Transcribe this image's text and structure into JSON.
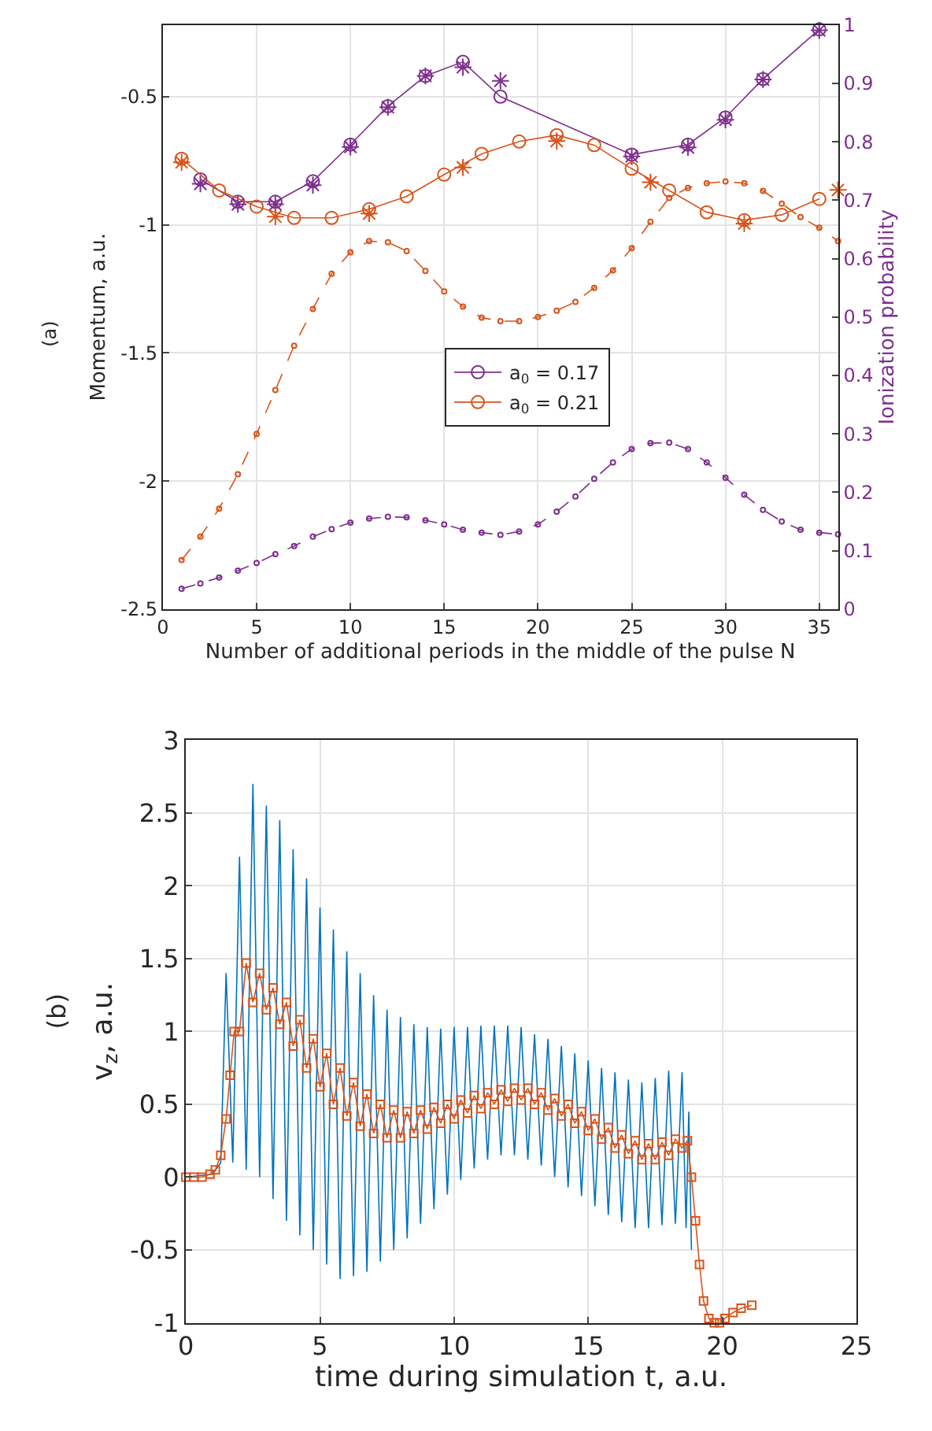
{
  "chart_data": [
    {
      "type": "line",
      "xlabel": "Number of additional periods in the middle of the pulse N",
      "ylabel": "Momentum, a.u.",
      "y2label": "Ionization probability",
      "annotations": [
        "(a)"
      ],
      "xlim": [
        0,
        36
      ],
      "xticks": [
        0,
        5,
        10,
        15,
        20,
        25,
        30,
        35
      ],
      "ylim": [
        -2.5,
        -0.22
      ],
      "yticks": [
        -2.5,
        -2,
        -1.5,
        -1,
        -0.5
      ],
      "y2lim": [
        0,
        1
      ],
      "y2ticks": [
        0,
        0.1,
        0.2,
        0.3,
        0.4,
        0.5,
        0.6,
        0.7,
        0.8,
        0.9,
        1
      ],
      "grid": true,
      "legend": "center",
      "series": [
        {
          "name": "a$_{0}$ = 0.17",
          "color": "#7e2f8e",
          "marker": "circle",
          "line_style": "solid",
          "x": [
            2,
            4,
            6,
            8,
            10,
            12,
            14,
            16,
            18,
            25,
            28,
            30,
            32,
            35
          ],
          "values": [
            -0.823,
            -0.91,
            -0.91,
            -0.83,
            -0.687,
            -0.537,
            -0.419,
            -0.364,
            -0.5,
            -0.726,
            -0.687,
            -0.581,
            -0.431,
            -0.237
          ]
        },
        {
          "type": "scatter",
          "color": "#7e2f8e",
          "marker": "cross",
          "x": [
            2,
            4,
            6,
            8,
            10,
            12,
            14,
            16,
            18,
            25,
            28,
            30,
            32,
            35
          ],
          "values": [
            -0.84,
            -0.92,
            -0.92,
            -0.845,
            -0.696,
            -0.541,
            -0.419,
            -0.385,
            -0.438,
            -0.733,
            -0.698,
            -0.59,
            -0.433,
            -0.241
          ]
        },
        {
          "name": "a$_{0}$ = 0.21",
          "color": "#d95319",
          "marker": "circle",
          "line_style": "solid",
          "x": [
            1,
            3,
            5,
            7,
            9,
            11,
            13,
            15,
            17,
            19,
            21,
            23,
            25,
            27,
            29,
            31,
            33,
            35
          ],
          "values": [
            -0.742,
            -0.866,
            -0.929,
            -0.973,
            -0.973,
            -0.939,
            -0.889,
            -0.804,
            -0.723,
            -0.675,
            -0.65,
            -0.689,
            -0.781,
            -0.866,
            -0.951,
            -0.982,
            -0.961,
            -0.899
          ]
        },
        {
          "type": "scatter",
          "color": "#d95319",
          "marker": "cross",
          "x": [
            1,
            6,
            11,
            16,
            21,
            26,
            31,
            36
          ],
          "values": [
            -0.756,
            -0.968,
            -0.956,
            -0.776,
            -0.673,
            -0.834,
            -0.995,
            -0.864
          ]
        },
        {
          "axis": "y2",
          "color": "#7e2f8e",
          "marker": "circle",
          "line_style": "dashed",
          "x": [
            1,
            2,
            3,
            4,
            5,
            6,
            7,
            8,
            9,
            10,
            11,
            12,
            13,
            14,
            15,
            16,
            17,
            18,
            19,
            20,
            21,
            22,
            23,
            24,
            25,
            26,
            27,
            28,
            29,
            30,
            31,
            32,
            33,
            34,
            35,
            36
          ],
          "values": [
            0.035,
            0.044,
            0.054,
            0.066,
            0.079,
            0.094,
            0.108,
            0.124,
            0.137,
            0.148,
            0.155,
            0.158,
            0.157,
            0.152,
            0.145,
            0.136,
            0.131,
            0.127,
            0.133,
            0.145,
            0.167,
            0.193,
            0.223,
            0.251,
            0.274,
            0.284,
            0.285,
            0.274,
            0.251,
            0.225,
            0.196,
            0.17,
            0.15,
            0.136,
            0.131,
            0.128
          ]
        },
        {
          "axis": "y2",
          "color": "#d95319",
          "marker": "circle",
          "line_style": "dashed",
          "x": [
            1,
            2,
            3,
            4,
            5,
            6,
            7,
            8,
            9,
            10,
            11,
            12,
            13,
            14,
            15,
            16,
            17,
            18,
            19,
            20,
            21,
            22,
            23,
            24,
            25,
            26,
            27,
            28,
            29,
            30,
            31,
            32,
            33,
            34,
            35,
            36
          ],
          "values": [
            0.084,
            0.124,
            0.172,
            0.231,
            0.3,
            0.375,
            0.451,
            0.514,
            0.574,
            0.611,
            0.63,
            0.628,
            0.613,
            0.579,
            0.544,
            0.518,
            0.499,
            0.493,
            0.493,
            0.5,
            0.511,
            0.526,
            0.55,
            0.58,
            0.618,
            0.663,
            0.704,
            0.721,
            0.729,
            0.732,
            0.729,
            0.716,
            0.694,
            0.671,
            0.653,
            0.63
          ]
        }
      ]
    },
    {
      "type": "line",
      "xlabel": "time during simulation t, a.u.",
      "ylabel": "v$_{z}$, a.u.",
      "annotations": [
        "(b)"
      ],
      "xlim": [
        0,
        25
      ],
      "xticks": [
        0,
        5,
        10,
        15,
        20,
        25
      ],
      "ylim": [
        -1,
        3
      ],
      "yticks": [
        -1,
        -0.5,
        0,
        0.5,
        1,
        1.5,
        2,
        2.5,
        3
      ],
      "grid": true,
      "series": [
        {
          "color": "#0072bd",
          "marker": "none",
          "line_style": "solid",
          "x": [
            0,
            1.0,
            1.3,
            1.5,
            1.75,
            2.0,
            2.25,
            2.5,
            2.75,
            3.0,
            3.25,
            3.5,
            3.75,
            4.0,
            4.25,
            4.5,
            4.75,
            5.0,
            5.25,
            5.5,
            5.75,
            6.0,
            6.25,
            6.5,
            6.75,
            7.0,
            7.25,
            7.5,
            7.75,
            8.0,
            8.25,
            8.5,
            8.75,
            9.0,
            9.25,
            9.5,
            9.75,
            10.0,
            10.25,
            10.5,
            10.75,
            11.0,
            11.25,
            11.5,
            11.75,
            12.0,
            12.25,
            12.5,
            12.75,
            13.0,
            13.25,
            13.5,
            13.75,
            14.0,
            14.25,
            14.5,
            14.75,
            15.0,
            15.25,
            15.5,
            15.75,
            16.0,
            16.25,
            16.5,
            16.75,
            17.0,
            17.25,
            17.5,
            17.75,
            18.0,
            18.25,
            18.5,
            18.65,
            18.75,
            18.85
          ],
          "values": [
            0,
            0.02,
            0.1,
            1.4,
            0.1,
            2.2,
            0.05,
            2.7,
            0.0,
            2.55,
            -0.15,
            2.45,
            -0.3,
            2.25,
            -0.4,
            2.05,
            -0.5,
            1.85,
            -0.6,
            1.7,
            -0.7,
            1.55,
            -0.68,
            1.4,
            -0.65,
            1.25,
            -0.58,
            1.15,
            -0.5,
            1.1,
            -0.42,
            1.05,
            -0.32,
            1.03,
            -0.22,
            1.02,
            -0.12,
            1.03,
            -0.02,
            1.03,
            0.06,
            1.04,
            0.12,
            1.04,
            0.15,
            1.04,
            0.15,
            1.03,
            0.12,
            0.98,
            0.08,
            0.95,
            0.0,
            0.9,
            -0.07,
            0.85,
            -0.13,
            0.8,
            -0.2,
            0.75,
            -0.26,
            0.72,
            -0.31,
            0.67,
            -0.35,
            0.65,
            -0.35,
            0.68,
            -0.33,
            0.73,
            -0.32,
            0.72,
            -0.35,
            0.45,
            -0.5
          ]
        },
        {
          "color": "#d95319",
          "marker": "square",
          "line_style": "solid",
          "x": [
            0,
            0.3,
            0.6,
            0.9,
            1.1,
            1.3,
            1.5,
            1.65,
            1.8,
            2.0,
            2.25,
            2.5,
            2.75,
            3.0,
            3.25,
            3.5,
            3.75,
            4.0,
            4.25,
            4.5,
            4.75,
            5.0,
            5.25,
            5.5,
            5.75,
            6.0,
            6.25,
            6.5,
            6.75,
            7.0,
            7.25,
            7.5,
            7.75,
            8.0,
            8.25,
            8.5,
            8.75,
            9.0,
            9.25,
            9.5,
            9.75,
            10.0,
            10.25,
            10.5,
            10.75,
            11.0,
            11.25,
            11.5,
            11.75,
            12.0,
            12.25,
            12.5,
            12.75,
            13.0,
            13.25,
            13.5,
            13.75,
            14.0,
            14.25,
            14.5,
            14.75,
            15.0,
            15.25,
            15.5,
            15.75,
            16.0,
            16.25,
            16.5,
            16.75,
            17.0,
            17.25,
            17.5,
            17.75,
            18.0,
            18.25,
            18.5,
            18.7,
            18.85,
            19.0,
            19.15,
            19.3,
            19.5,
            19.7,
            19.9,
            20.1,
            20.4,
            20.7,
            21.1
          ],
          "values": [
            0,
            0,
            0.0,
            0.02,
            0.05,
            0.15,
            0.4,
            0.7,
            1.0,
            1.0,
            1.47,
            1.2,
            1.4,
            1.15,
            1.3,
            1.05,
            1.2,
            0.9,
            1.08,
            0.75,
            0.95,
            0.62,
            0.85,
            0.5,
            0.75,
            0.42,
            0.65,
            0.35,
            0.57,
            0.3,
            0.5,
            0.27,
            0.46,
            0.27,
            0.45,
            0.3,
            0.46,
            0.33,
            0.48,
            0.37,
            0.5,
            0.4,
            0.53,
            0.44,
            0.56,
            0.47,
            0.58,
            0.5,
            0.6,
            0.52,
            0.61,
            0.53,
            0.61,
            0.5,
            0.58,
            0.46,
            0.54,
            0.42,
            0.5,
            0.37,
            0.45,
            0.32,
            0.4,
            0.26,
            0.34,
            0.2,
            0.29,
            0.16,
            0.25,
            0.12,
            0.23,
            0.12,
            0.24,
            0.15,
            0.26,
            0.2,
            0.25,
            0.0,
            -0.3,
            -0.6,
            -0.85,
            -0.97,
            -1.0,
            -1.0,
            -0.97,
            -0.93,
            -0.9,
            -0.88
          ]
        }
      ]
    }
  ]
}
